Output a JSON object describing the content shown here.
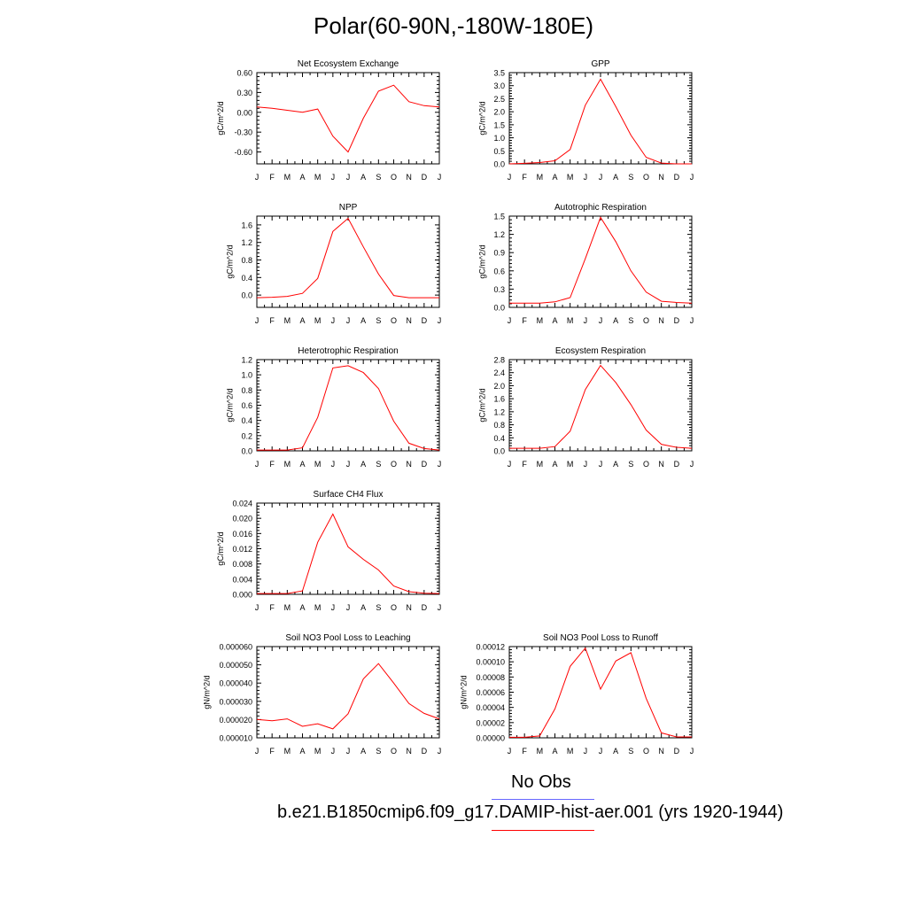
{
  "title": "Polar(60-90N,-180W-180E)",
  "colors": {
    "model_line": "#ff0000",
    "obs_line": "#6666ff",
    "axes": "#000000"
  },
  "legend": {
    "obs_label": "No Obs",
    "case_label": "b.e21.B1850cmip6.f09_g17.DAMIP-hist-aer.001 (yrs 1920-1944)"
  },
  "chart_data": [
    {
      "type": "line",
      "title": "Net Ecosystem Exchange",
      "ylabel": "gC/m^2/d",
      "x": [
        "J",
        "F",
        "M",
        "A",
        "M",
        "J",
        "J",
        "A",
        "S",
        "O",
        "N",
        "D",
        "J"
      ],
      "ylim": [
        -0.78,
        0.6
      ],
      "yticks": [
        "0.60",
        "0.30",
        "0.00",
        "-0.30",
        "-0.60"
      ],
      "ytick_values": [
        0.6,
        0.3,
        0.0,
        -0.3,
        -0.6
      ],
      "series": [
        {
          "values": [
            0.08,
            0.06,
            0.03,
            0.0,
            0.05,
            -0.36,
            -0.6,
            -0.09,
            0.32,
            0.41,
            0.16,
            0.1,
            0.08
          ]
        }
      ]
    },
    {
      "type": "line",
      "title": "GPP",
      "ylabel": "gC/m^2/d",
      "x": [
        "J",
        "F",
        "M",
        "A",
        "M",
        "J",
        "J",
        "A",
        "S",
        "O",
        "N",
        "D",
        "J"
      ],
      "ylim": [
        0,
        3.5
      ],
      "yticks": [
        "3.5",
        "3.0",
        "2.5",
        "2.0",
        "1.5",
        "1.0",
        "0.5",
        "0.0"
      ],
      "ytick_values": [
        3.5,
        3.0,
        2.5,
        2.0,
        1.5,
        1.0,
        0.5,
        0.0
      ],
      "series": [
        {
          "values": [
            0.0,
            0.02,
            0.05,
            0.12,
            0.55,
            2.25,
            3.25,
            2.2,
            1.1,
            0.25,
            0.03,
            0.0,
            0.0
          ]
        }
      ]
    },
    {
      "type": "line",
      "title": "NPP",
      "ylabel": "gC/m^2/d",
      "x": [
        "J",
        "F",
        "M",
        "A",
        "M",
        "J",
        "J",
        "A",
        "S",
        "O",
        "N",
        "D",
        "J"
      ],
      "ylim": [
        -0.28,
        1.8
      ],
      "yticks": [
        "1.6",
        "1.2",
        "0.8",
        "0.4",
        "0.0"
      ],
      "ytick_values": [
        1.6,
        1.2,
        0.8,
        0.4,
        0.0
      ],
      "series": [
        {
          "values": [
            -0.06,
            -0.05,
            -0.03,
            0.04,
            0.38,
            1.45,
            1.75,
            1.1,
            0.48,
            -0.01,
            -0.06,
            -0.06,
            -0.06
          ]
        }
      ]
    },
    {
      "type": "line",
      "title": "Autotrophic Respiration",
      "ylabel": "gC/m^2/d",
      "x": [
        "J",
        "F",
        "M",
        "A",
        "M",
        "J",
        "J",
        "A",
        "S",
        "O",
        "N",
        "D",
        "J"
      ],
      "ylim": [
        0,
        1.5
      ],
      "yticks": [
        "1.5",
        "1.2",
        "0.9",
        "0.6",
        "0.3",
        "0.0"
      ],
      "ytick_values": [
        1.5,
        1.2,
        0.9,
        0.6,
        0.3,
        0.0
      ],
      "series": [
        {
          "values": [
            0.07,
            0.07,
            0.07,
            0.09,
            0.16,
            0.8,
            1.48,
            1.08,
            0.6,
            0.25,
            0.1,
            0.08,
            0.07
          ]
        }
      ]
    },
    {
      "type": "line",
      "title": "Heterotrophic Respiration",
      "ylabel": "gC/m^2/d",
      "x": [
        "J",
        "F",
        "M",
        "A",
        "M",
        "J",
        "J",
        "A",
        "S",
        "O",
        "N",
        "D",
        "J"
      ],
      "ylim": [
        0,
        1.2
      ],
      "yticks": [
        "1.2",
        "1.0",
        "0.8",
        "0.6",
        "0.4",
        "0.2",
        "0.0"
      ],
      "ytick_values": [
        1.2,
        1.0,
        0.8,
        0.6,
        0.4,
        0.2,
        0.0
      ],
      "series": [
        {
          "values": [
            0.01,
            0.01,
            0.01,
            0.04,
            0.44,
            1.09,
            1.12,
            1.03,
            0.82,
            0.39,
            0.1,
            0.03,
            0.01
          ]
        }
      ]
    },
    {
      "type": "line",
      "title": "Ecosystem Respiration",
      "ylabel": "gC/m^2/d",
      "x": [
        "J",
        "F",
        "M",
        "A",
        "M",
        "J",
        "J",
        "A",
        "S",
        "O",
        "N",
        "D",
        "J"
      ],
      "ylim": [
        0,
        2.8
      ],
      "yticks": [
        "2.8",
        "2.4",
        "2.0",
        "1.6",
        "1.2",
        "0.8",
        "0.4",
        "0.0"
      ],
      "ytick_values": [
        2.8,
        2.4,
        2.0,
        1.6,
        1.2,
        0.8,
        0.4,
        0.0
      ],
      "series": [
        {
          "values": [
            0.08,
            0.08,
            0.08,
            0.13,
            0.6,
            1.88,
            2.62,
            2.1,
            1.42,
            0.64,
            0.2,
            0.11,
            0.08
          ]
        }
      ]
    },
    {
      "type": "line",
      "title": "Surface CH4 Flux",
      "ylabel": "gC/m^2/d",
      "x": [
        "J",
        "F",
        "M",
        "A",
        "M",
        "J",
        "J",
        "A",
        "S",
        "O",
        "N",
        "D",
        "J"
      ],
      "ylim": [
        0,
        0.024
      ],
      "yticks": [
        "0.024",
        "0.020",
        "0.016",
        "0.012",
        "0.008",
        "0.004",
        "0.000"
      ],
      "ytick_values": [
        0.024,
        0.02,
        0.016,
        0.012,
        0.008,
        0.004,
        0.0
      ],
      "series": [
        {
          "values": [
            0.0002,
            0.0002,
            0.0002,
            0.0009,
            0.0137,
            0.0211,
            0.0125,
            0.0092,
            0.0064,
            0.0022,
            0.0007,
            0.0003,
            0.0002
          ]
        }
      ]
    },
    {
      "type": "line",
      "title": "Soil NO3 Pool Loss to Leaching",
      "ylabel": "gN/m^2/d",
      "x": [
        "J",
        "F",
        "M",
        "A",
        "M",
        "J",
        "J",
        "A",
        "S",
        "O",
        "N",
        "D",
        "J"
      ],
      "ylim": [
        1e-05,
        6e-05
      ],
      "yticks": [
        "0.000060",
        "0.000050",
        "0.000040",
        "0.000030",
        "0.000020",
        "0.000010"
      ],
      "ytick_values": [
        6e-05,
        5e-05,
        4e-05,
        3e-05,
        2e-05,
        1e-05
      ],
      "series": [
        {
          "values": [
            2.01e-05,
            1.93e-05,
            2.04e-05,
            1.63e-05,
            1.77e-05,
            1.49e-05,
            2.32e-05,
            4.23e-05,
            5.07e-05,
            4e-05,
            2.88e-05,
            2.34e-05,
            2.04e-05
          ]
        }
      ]
    },
    {
      "type": "line",
      "title": "Soil NO3 Pool Loss to Runoff",
      "ylabel": "gN/m^2/d",
      "x": [
        "J",
        "F",
        "M",
        "A",
        "M",
        "J",
        "J",
        "A",
        "S",
        "O",
        "N",
        "D",
        "J"
      ],
      "ylim": [
        0,
        0.00012
      ],
      "yticks": [
        "0.00012",
        "0.00010",
        "0.00008",
        "0.00006",
        "0.00004",
        "0.00002",
        "0.00000"
      ],
      "ytick_values": [
        0.00012,
        0.0001,
        8e-05,
        6e-05,
        4e-05,
        2e-05,
        0.0
      ],
      "series": [
        {
          "values": [
            7e-07,
            7e-07,
            2.4e-06,
            3.8e-05,
            9.4e-05,
            0.000118,
            6.4e-05,
            0.000101,
            0.000112,
            5.2e-05,
            6.5e-06,
            1.2e-06,
            1.2e-06
          ]
        }
      ]
    }
  ]
}
